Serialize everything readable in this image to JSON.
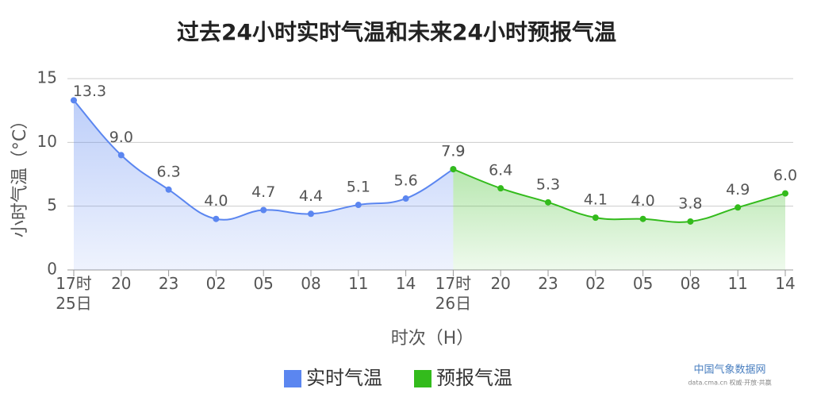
{
  "chart_data": {
    "type": "line",
    "title": "过去24小时实时气温和未来24小时预报气温",
    "ylabel": "小时气温（°C）",
    "xlabel": "时次（H）",
    "categories": [
      "17时\n25日",
      "20",
      "23",
      "02",
      "05",
      "08",
      "11",
      "14",
      "17时\n26日",
      "20",
      "23",
      "02",
      "05",
      "08",
      "11",
      "14"
    ],
    "series": [
      {
        "name": "实时气温",
        "color": "#5b86f0",
        "values": [
          13.3,
          9.0,
          6.3,
          4.0,
          4.7,
          4.4,
          5.1,
          5.6,
          7.9,
          null,
          null,
          null,
          null,
          null,
          null,
          null
        ],
        "value_labels": [
          "13.3",
          "9.0",
          "6.3",
          "4.0",
          "4.7",
          "4.4",
          "5.1",
          "5.6",
          "7.9",
          null,
          null,
          null,
          null,
          null,
          null,
          null
        ]
      },
      {
        "name": "预报气温",
        "color": "#33bb1c",
        "values": [
          null,
          null,
          null,
          null,
          null,
          null,
          null,
          null,
          7.9,
          6.4,
          5.3,
          4.1,
          4.0,
          3.8,
          4.9,
          6.0
        ],
        "value_labels": [
          null,
          null,
          null,
          null,
          null,
          null,
          null,
          null,
          "7.9",
          "6.4",
          "5.3",
          "4.1",
          "4.0",
          "3.8",
          "4.9",
          "6.0"
        ]
      }
    ],
    "ylim": [
      0,
      15
    ],
    "yticks": [
      0,
      5,
      10,
      15
    ],
    "grid": true,
    "legend": "bottom"
  },
  "footer": {
    "brand": "中国气象数据网",
    "tagline": "data.cma.cn 权威·开放·共赢"
  }
}
